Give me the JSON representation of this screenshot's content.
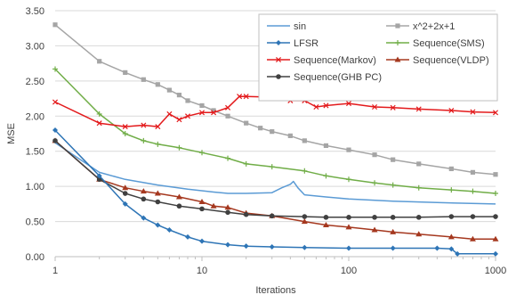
{
  "chart_data": {
    "type": "line",
    "title": "",
    "xlabel": "Iterations",
    "ylabel": "MSE",
    "xscale": "log",
    "xlim": [
      1,
      1000
    ],
    "ylim": [
      0,
      3.5
    ],
    "x_ticks": [
      1,
      10,
      100,
      1000
    ],
    "x_tick_labels": [
      "1",
      "10",
      "100",
      "1000"
    ],
    "y_ticks": [
      0,
      0.5,
      1,
      1.5,
      2,
      2.5,
      3,
      3.5
    ],
    "y_tick_labels": [
      "0.00",
      "0.50",
      "1.00",
      "1.50",
      "2.00",
      "2.50",
      "3.00",
      "3.50"
    ],
    "grid": "horizontal",
    "legend_position": "top-right",
    "series": [
      {
        "name": "sin",
        "color": "#5b9bd5",
        "marker": "none",
        "points": [
          [
            1,
            1.62
          ],
          [
            2,
            1.2
          ],
          [
            3,
            1.1
          ],
          [
            5,
            1.02
          ],
          [
            8,
            0.96
          ],
          [
            12,
            0.92
          ],
          [
            15,
            0.9
          ],
          [
            20,
            0.9
          ],
          [
            30,
            0.91
          ],
          [
            35,
            0.98
          ],
          [
            40,
            1.03
          ],
          [
            42,
            1.07
          ],
          [
            45,
            0.98
          ],
          [
            50,
            0.88
          ],
          [
            70,
            0.85
          ],
          [
            100,
            0.82
          ],
          [
            200,
            0.79
          ],
          [
            400,
            0.77
          ],
          [
            1000,
            0.75
          ]
        ]
      },
      {
        "name": "x^2+2x+1",
        "color": "#a5a5a5",
        "marker": "square",
        "points": [
          [
            1,
            3.3
          ],
          [
            2,
            2.78
          ],
          [
            3,
            2.62
          ],
          [
            4,
            2.52
          ],
          [
            5,
            2.45
          ],
          [
            6,
            2.37
          ],
          [
            7,
            2.3
          ],
          [
            8,
            2.22
          ],
          [
            10,
            2.15
          ],
          [
            12,
            2.08
          ],
          [
            15,
            2.0
          ],
          [
            20,
            1.9
          ],
          [
            25,
            1.83
          ],
          [
            30,
            1.78
          ],
          [
            40,
            1.72
          ],
          [
            50,
            1.65
          ],
          [
            70,
            1.58
          ],
          [
            100,
            1.52
          ],
          [
            150,
            1.45
          ],
          [
            200,
            1.38
          ],
          [
            300,
            1.32
          ],
          [
            500,
            1.25
          ],
          [
            700,
            1.2
          ],
          [
            1000,
            1.17
          ]
        ]
      },
      {
        "name": "LFSR",
        "color": "#2e75b6",
        "marker": "diamond",
        "points": [
          [
            1,
            1.8
          ],
          [
            2,
            1.15
          ],
          [
            3,
            0.75
          ],
          [
            4,
            0.55
          ],
          [
            5,
            0.45
          ],
          [
            6,
            0.38
          ],
          [
            8,
            0.28
          ],
          [
            10,
            0.22
          ],
          [
            15,
            0.17
          ],
          [
            20,
            0.15
          ],
          [
            30,
            0.14
          ],
          [
            50,
            0.13
          ],
          [
            100,
            0.12
          ],
          [
            200,
            0.12
          ],
          [
            400,
            0.12
          ],
          [
            500,
            0.11
          ],
          [
            550,
            0.04
          ],
          [
            1000,
            0.04
          ]
        ]
      },
      {
        "name": "Sequence(SMS)",
        "color": "#70ad47",
        "marker": "plus",
        "points": [
          [
            1,
            2.67
          ],
          [
            2,
            2.03
          ],
          [
            3,
            1.75
          ],
          [
            4,
            1.65
          ],
          [
            5,
            1.6
          ],
          [
            7,
            1.55
          ],
          [
            10,
            1.48
          ],
          [
            15,
            1.4
          ],
          [
            20,
            1.32
          ],
          [
            30,
            1.28
          ],
          [
            50,
            1.22
          ],
          [
            70,
            1.15
          ],
          [
            100,
            1.1
          ],
          [
            150,
            1.05
          ],
          [
            200,
            1.02
          ],
          [
            300,
            0.98
          ],
          [
            500,
            0.95
          ],
          [
            700,
            0.93
          ],
          [
            1000,
            0.9
          ]
        ]
      },
      {
        "name": "Sequence(Markov)",
        "color": "#e31a1c",
        "marker": "x",
        "points": [
          [
            1,
            2.2
          ],
          [
            2,
            1.9
          ],
          [
            3,
            1.85
          ],
          [
            4,
            1.87
          ],
          [
            5,
            1.85
          ],
          [
            6,
            2.03
          ],
          [
            7,
            1.95
          ],
          [
            8,
            2.0
          ],
          [
            10,
            2.05
          ],
          [
            12,
            2.05
          ],
          [
            15,
            2.12
          ],
          [
            18,
            2.28
          ],
          [
            20,
            2.28
          ],
          [
            30,
            2.27
          ],
          [
            40,
            2.22
          ],
          [
            50,
            2.22
          ],
          [
            60,
            2.13
          ],
          [
            70,
            2.15
          ],
          [
            100,
            2.18
          ],
          [
            150,
            2.13
          ],
          [
            200,
            2.12
          ],
          [
            300,
            2.1
          ],
          [
            500,
            2.08
          ],
          [
            700,
            2.06
          ],
          [
            1000,
            2.05
          ]
        ]
      },
      {
        "name": "Sequence(VLDP)",
        "color": "#a5381f",
        "marker": "triangle",
        "points": [
          [
            1,
            1.65
          ],
          [
            2,
            1.1
          ],
          [
            3,
            0.98
          ],
          [
            4,
            0.93
          ],
          [
            5,
            0.9
          ],
          [
            7,
            0.85
          ],
          [
            10,
            0.78
          ],
          [
            12,
            0.72
          ],
          [
            15,
            0.7
          ],
          [
            20,
            0.62
          ],
          [
            30,
            0.58
          ],
          [
            50,
            0.5
          ],
          [
            70,
            0.45
          ],
          [
            100,
            0.42
          ],
          [
            150,
            0.38
          ],
          [
            200,
            0.35
          ],
          [
            300,
            0.32
          ],
          [
            500,
            0.28
          ],
          [
            700,
            0.25
          ],
          [
            1000,
            0.25
          ]
        ]
      },
      {
        "name": "Sequence(GHB PC)",
        "color": "#404040",
        "marker": "circle",
        "points": [
          [
            1,
            1.65
          ],
          [
            2,
            1.1
          ],
          [
            3,
            0.9
          ],
          [
            4,
            0.82
          ],
          [
            5,
            0.78
          ],
          [
            7,
            0.72
          ],
          [
            10,
            0.68
          ],
          [
            15,
            0.63
          ],
          [
            20,
            0.6
          ],
          [
            30,
            0.58
          ],
          [
            50,
            0.57
          ],
          [
            70,
            0.56
          ],
          [
            100,
            0.56
          ],
          [
            150,
            0.56
          ],
          [
            200,
            0.56
          ],
          [
            300,
            0.56
          ],
          [
            500,
            0.57
          ],
          [
            700,
            0.57
          ],
          [
            1000,
            0.57
          ]
        ]
      }
    ]
  }
}
